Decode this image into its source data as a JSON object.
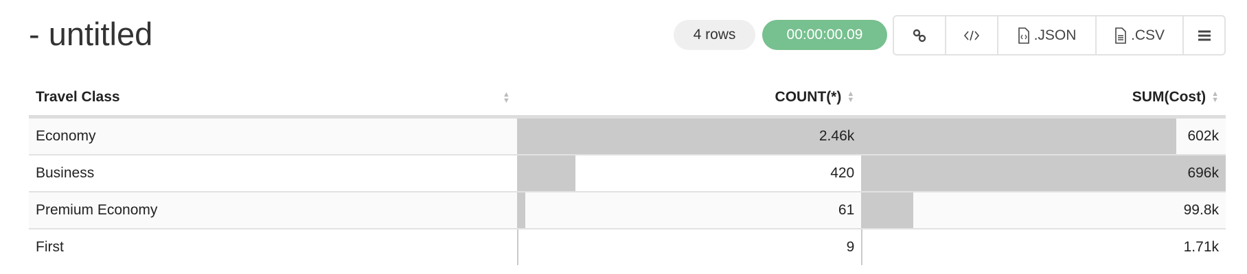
{
  "title": "- untitled",
  "status": {
    "rows": "4 rows",
    "elapsed": "00:00:00.09",
    "elapsed_color": "#77c08f"
  },
  "toolbar": {
    "link_icon": "link-icon",
    "embed_icon": "code-icon",
    "json_label": ".JSON",
    "csv_label": ".CSV",
    "menu_icon": "hamburger-menu-icon"
  },
  "table": {
    "columns": [
      "Travel Class",
      "COUNT(*)",
      "SUM(Cost)"
    ],
    "rows": [
      {
        "class": "Economy",
        "count": "2.46k",
        "count_value": 2460,
        "sum": "602k",
        "sum_value": 602000
      },
      {
        "class": "Business",
        "count": "420",
        "count_value": 420,
        "sum": "696k",
        "sum_value": 696000
      },
      {
        "class": "Premium Economy",
        "count": "61",
        "count_value": 61,
        "sum": "99.8k",
        "sum_value": 99800
      },
      {
        "class": "First",
        "count": "9",
        "count_value": 9,
        "sum": "1.71k",
        "sum_value": 1710
      }
    ]
  }
}
